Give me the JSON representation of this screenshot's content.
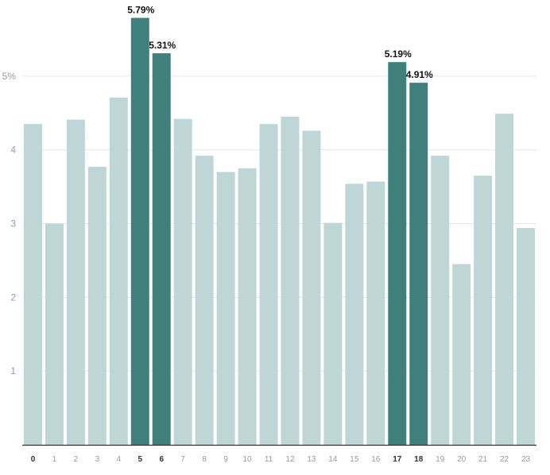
{
  "chart_data": {
    "type": "bar",
    "categories": [
      "0",
      "1",
      "2",
      "3",
      "4",
      "5",
      "6",
      "7",
      "8",
      "9",
      "10",
      "11",
      "12",
      "13",
      "14",
      "15",
      "16",
      "17",
      "18",
      "19",
      "20",
      "21",
      "22",
      "23"
    ],
    "values": [
      4.35,
      3.0,
      4.41,
      3.77,
      4.71,
      5.79,
      5.31,
      4.42,
      3.92,
      3.7,
      3.75,
      4.35,
      4.45,
      4.26,
      3.01,
      3.54,
      3.57,
      5.19,
      4.91,
      3.92,
      2.45,
      3.65,
      4.49,
      2.94
    ],
    "highlighted": [
      "5",
      "6",
      "17",
      "18"
    ],
    "value_labels": {
      "5": "5.79%",
      "6": "5.31%",
      "17": "5.19%",
      "18": "4.91%"
    },
    "ytick_labels": [
      "1",
      "2",
      "3",
      "4",
      "5%"
    ],
    "yticks": [
      1,
      2,
      3,
      4,
      5
    ],
    "ylim": [
      0,
      6.0
    ],
    "title": "",
    "xlabel": "",
    "ylabel": "",
    "grid": true,
    "colors": {
      "bar": "#bed6d6",
      "highlight": "#3f7f7c",
      "grid": "#e6e6e6",
      "axis": "#333333"
    }
  }
}
